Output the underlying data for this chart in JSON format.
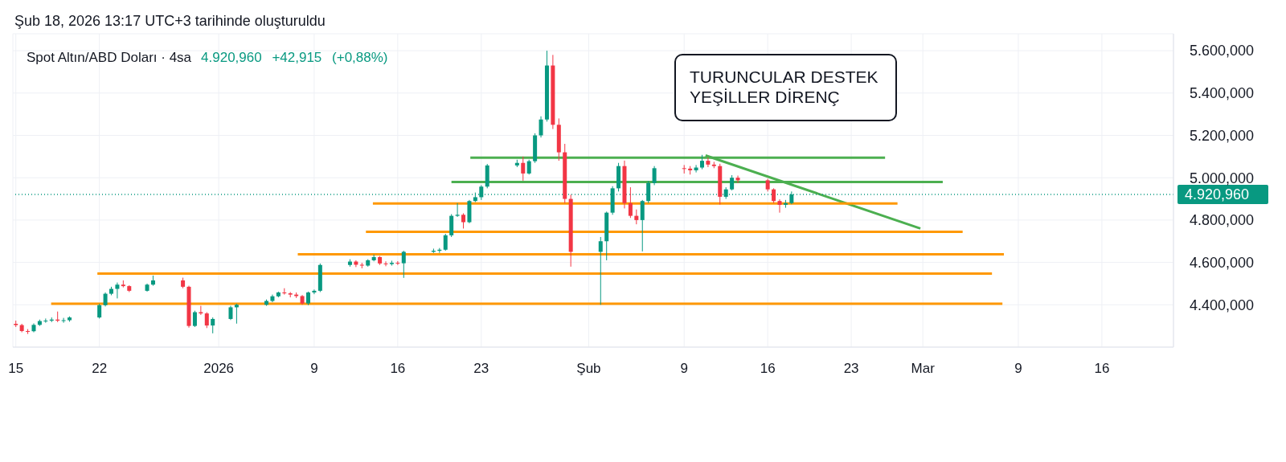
{
  "chart_data": {
    "type": "candlestick",
    "title": "Spot Altın/ABD Doları · 4sa",
    "subtitle": "4.920,960 +42,915 (+0,88%)",
    "annotations": [
      "Şub 18, 2026 13:17 UTC+3 tarihinde oluşturuldu",
      "TURUNCULAR DESTEK\nYEŞİLLER DİRENÇ"
    ],
    "x": [
      "2025-12-15T00:00",
      "2025-12-15T12:00",
      "2025-12-16T00:00",
      "2025-12-16T12:00",
      "2025-12-17T00:00",
      "2025-12-17T12:00",
      "2025-12-18T00:00",
      "2025-12-18T12:00",
      "2025-12-19T00:00",
      "2025-12-19T12:00",
      "2025-12-22T00:00",
      "2025-12-22T12:00",
      "2025-12-23T00:00",
      "2025-12-23T12:00",
      "2025-12-24T00:00",
      "2025-12-24T12:00",
      "2025-12-26T00:00",
      "2025-12-26T12:00",
      "2025-12-29T00:00",
      "2025-12-29T12:00",
      "2025-12-30T00:00",
      "2025-12-30T12:00",
      "2025-12-31T00:00",
      "2025-12-31T12:00",
      "2026-01-02T00:00",
      "2026-01-02T12:00",
      "2026-01-05T00:00",
      "2026-01-05T12:00",
      "2026-01-06T00:00",
      "2026-01-06T12:00",
      "2026-01-07T00:00",
      "2026-01-07T12:00",
      "2026-01-08T00:00",
      "2026-01-08T12:00",
      "2026-01-09T00:00",
      "2026-01-09T12:00",
      "2026-01-12T00:00",
      "2026-01-12T12:00",
      "2026-01-13T00:00",
      "2026-01-13T12:00",
      "2026-01-14T00:00",
      "2026-01-14T12:00",
      "2026-01-15T00:00",
      "2026-01-15T12:00",
      "2026-01-16T00:00",
      "2026-01-16T12:00",
      "2026-01-19T00:00",
      "2026-01-19T12:00",
      "2026-01-20T00:00",
      "2026-01-20T12:00",
      "2026-01-21T00:00",
      "2026-01-21T12:00",
      "2026-01-22T00:00",
      "2026-01-22T12:00",
      "2026-01-23T00:00",
      "2026-01-23T12:00",
      "2026-01-26T00:00",
      "2026-01-26T12:00",
      "2026-01-27T00:00",
      "2026-01-27T12:00",
      "2026-01-28T00:00",
      "2026-01-28T12:00",
      "2026-01-29T00:00",
      "2026-01-29T12:00",
      "2026-01-30T00:00",
      "2026-01-30T12:00",
      "2026-02-02T00:00",
      "2026-02-02T12:00",
      "2026-02-03T00:00",
      "2026-02-03T12:00",
      "2026-02-04T00:00",
      "2026-02-04T12:00",
      "2026-02-05T00:00",
      "2026-02-05T12:00",
      "2026-02-06T00:00",
      "2026-02-06T12:00",
      "2026-02-09T00:00",
      "2026-02-09T12:00",
      "2026-02-10T00:00",
      "2026-02-10T12:00",
      "2026-02-11T00:00",
      "2026-02-11T12:00",
      "2026-02-12T00:00",
      "2026-02-12T12:00",
      "2026-02-13T00:00",
      "2026-02-13T12:00",
      "2026-02-16T00:00",
      "2026-02-16T12:00",
      "2026-02-17T00:00",
      "2026-02-17T12:00",
      "2026-02-18T00:00"
    ],
    "ohlc": [
      [
        4310,
        4325,
        4295,
        4304
      ],
      [
        4304,
        4310,
        4270,
        4276
      ],
      [
        4276,
        4285,
        4262,
        4275
      ],
      [
        4275,
        4312,
        4270,
        4305
      ],
      [
        4305,
        4330,
        4300,
        4323
      ],
      [
        4323,
        4335,
        4315,
        4325
      ],
      [
        4325,
        4340,
        4318,
        4330
      ],
      [
        4330,
        4368,
        4318,
        4325
      ],
      [
        4325,
        4338,
        4315,
        4327
      ],
      [
        4327,
        4345,
        4320,
        4340
      ],
      [
        4340,
        4405,
        4335,
        4398
      ],
      [
        4398,
        4458,
        4392,
        4452
      ],
      [
        4452,
        4485,
        4445,
        4475
      ],
      [
        4475,
        4505,
        4430,
        4495
      ],
      [
        4495,
        4515,
        4482,
        4488
      ],
      [
        4488,
        4492,
        4460,
        4466
      ],
      [
        4466,
        4500,
        4462,
        4495
      ],
      [
        4495,
        4538,
        4490,
        4515
      ],
      [
        4515,
        4528,
        4478,
        4485
      ],
      [
        4485,
        4490,
        4292,
        4300
      ],
      [
        4300,
        4372,
        4295,
        4365
      ],
      [
        4365,
        4395,
        4352,
        4359
      ],
      [
        4359,
        4365,
        4290,
        4302
      ],
      [
        4302,
        4340,
        4265,
        4333
      ],
      [
        4333,
        4395,
        4328,
        4388
      ],
      [
        4388,
        4405,
        4311,
        4400
      ],
      [
        4400,
        4425,
        4395,
        4418
      ],
      [
        4418,
        4448,
        4412,
        4440
      ],
      [
        4440,
        4462,
        4435,
        4458
      ],
      [
        4458,
        4478,
        4448,
        4454
      ],
      [
        4454,
        4460,
        4435,
        4448
      ],
      [
        4448,
        4458,
        4432,
        4441
      ],
      [
        4441,
        4446,
        4400,
        4406
      ],
      [
        4406,
        4462,
        4398,
        4458
      ],
      [
        4458,
        4472,
        4450,
        4466
      ],
      [
        4466,
        4595,
        4460,
        4588
      ],
      [
        4588,
        4615,
        4580,
        4604
      ],
      [
        4604,
        4610,
        4578,
        4589
      ],
      [
        4589,
        4598,
        4572,
        4585
      ],
      [
        4585,
        4615,
        4580,
        4610
      ],
      [
        4610,
        4637,
        4605,
        4625
      ],
      [
        4625,
        4630,
        4588,
        4595
      ],
      [
        4595,
        4605,
        4582,
        4592
      ],
      [
        4592,
        4608,
        4585,
        4598
      ],
      [
        4598,
        4606,
        4588,
        4596
      ],
      [
        4596,
        4655,
        4527,
        4650
      ],
      [
        4650,
        4665,
        4645,
        4655
      ],
      [
        4655,
        4668,
        4645,
        4660
      ],
      [
        4660,
        4735,
        4655,
        4728
      ],
      [
        4728,
        4828,
        4720,
        4820
      ],
      [
        4820,
        4880,
        4815,
        4825
      ],
      [
        4825,
        4832,
        4760,
        4790
      ],
      [
        4790,
        4895,
        4785,
        4890
      ],
      [
        4890,
        4930,
        4885,
        4908
      ],
      [
        4908,
        4965,
        4895,
        4958
      ],
      [
        4958,
        5065,
        4950,
        5058
      ],
      [
        5058,
        5085,
        5050,
        5070
      ],
      [
        5070,
        5100,
        4986,
        5020
      ],
      [
        5020,
        5085,
        5015,
        5078
      ],
      [
        5078,
        5210,
        5070,
        5200
      ],
      [
        5200,
        5290,
        5190,
        5275
      ],
      [
        5275,
        5600,
        5265,
        5530
      ],
      [
        5530,
        5580,
        5230,
        5250
      ],
      [
        5250,
        5280,
        5080,
        5120
      ],
      [
        5120,
        5160,
        4880,
        4900
      ],
      [
        4900,
        4920,
        4580,
        4650
      ],
      [
        4650,
        4720,
        4400,
        4700
      ],
      [
        4700,
        4840,
        4610,
        4835
      ],
      [
        4835,
        4960,
        4825,
        4950
      ],
      [
        4950,
        5070,
        4935,
        5055
      ],
      [
        5055,
        5081,
        4855,
        4880
      ],
      [
        4880,
        4955,
        4810,
        4820
      ],
      [
        4820,
        4850,
        4780,
        4800
      ],
      [
        4800,
        4895,
        4652,
        4890
      ],
      [
        4890,
        4985,
        4880,
        4975
      ],
      [
        4975,
        5055,
        4965,
        5045
      ],
      [
        5045,
        5060,
        5020,
        5043
      ],
      [
        5043,
        5055,
        5015,
        5035
      ],
      [
        5035,
        5060,
        5025,
        5048
      ],
      [
        5048,
        5108,
        5040,
        5080
      ],
      [
        5080,
        5095,
        5050,
        5062
      ],
      [
        5062,
        5075,
        5045,
        5055
      ],
      [
        5055,
        5066,
        4873,
        4910
      ],
      [
        4910,
        4955,
        4900,
        4945
      ],
      [
        4945,
        5012,
        4940,
        5000
      ],
      [
        5000,
        5010,
        4975,
        4988
      ],
      [
        4988,
        4995,
        4935,
        4945
      ],
      [
        4945,
        4950,
        4880,
        4890
      ],
      [
        4890,
        4898,
        4835,
        4872
      ],
      [
        4872,
        4895,
        4858,
        4880
      ],
      [
        4880,
        4935,
        4875,
        4920.96
      ]
    ],
    "colors": [
      "#f23645",
      "#f23645",
      "#f23645",
      "#089981",
      "#089981",
      "#089981",
      "#089981",
      "#f23645",
      "#089981",
      "#089981",
      "#089981",
      "#089981",
      "#089981",
      "#089981",
      "#f23645",
      "#f23645",
      "#089981",
      "#089981",
      "#f23645",
      "#f23645",
      "#089981",
      "#f23645",
      "#f23645",
      "#089981",
      "#089981",
      "#089981",
      "#089981",
      "#089981",
      "#089981",
      "#f23645",
      "#f23645",
      "#f23645",
      "#f23645",
      "#089981",
      "#089981",
      "#089981",
      "#089981",
      "#f23645",
      "#f23645",
      "#089981",
      "#089981",
      "#f23645",
      "#f23645",
      "#089981",
      "#f23645",
      "#089981",
      "#089981",
      "#089981",
      "#089981",
      "#089981",
      "#089981",
      "#f23645",
      "#089981",
      "#089981",
      "#089981",
      "#089981",
      "#089981",
      "#f23645",
      "#089981",
      "#089981",
      "#089981",
      "#089981",
      "#f23645",
      "#f23645",
      "#f23645",
      "#f23645",
      "#089981",
      "#089981",
      "#089981",
      "#089981",
      "#f23645",
      "#f23645",
      "#f23645",
      "#089981",
      "#089981",
      "#089981",
      "#f23645",
      "#f23645",
      "#089981",
      "#089981",
      "#f23645",
      "#f23645",
      "#f23645",
      "#089981",
      "#089981",
      "#f23645",
      "#f23645",
      "#f23645",
      "#f23645",
      "#089981",
      "#089981"
    ],
    "series": [
      {
        "type": "line",
        "color": "#4caf50",
        "x": [
          "2026-01-22T02:00",
          "2026-02-25T20:00"
        ],
        "values": [
          5095,
          5095
        ]
      },
      {
        "type": "line",
        "color": "#4caf50",
        "x": [
          "2026-01-20T12:00",
          "2026-03-02T16:00"
        ],
        "values": [
          4980,
          4980
        ]
      },
      {
        "type": "line",
        "color": "#4caf50",
        "x": [
          "2026-02-10T19:00",
          "2026-02-28T19:00"
        ],
        "values": [
          5105,
          4760
        ]
      },
      {
        "type": "line",
        "color": "#ff9800",
        "x": [
          "2026-01-13T22:00",
          "2026-02-26T21:00"
        ],
        "values": [
          4878,
          4878
        ]
      },
      {
        "type": "line",
        "color": "#ff9800",
        "x": [
          "2026-01-13T08:00",
          "2026-03-04T08:00"
        ],
        "values": [
          4745,
          4745
        ]
      },
      {
        "type": "line",
        "color": "#ff9800",
        "x": [
          "2026-01-07T15:00",
          "2026-03-07T19:00"
        ],
        "values": [
          4638,
          4638
        ]
      },
      {
        "type": "line",
        "color": "#ff9800",
        "x": [
          "2025-12-21T20:00",
          "2026-03-06T19:00"
        ],
        "values": [
          4547,
          4547
        ]
      },
      {
        "type": "line",
        "color": "#ff9800",
        "x": [
          "2025-12-17T23:00",
          "2026-03-07T16:00"
        ],
        "values": [
          4405,
          4405
        ]
      }
    ],
    "ref_lines": [
      {
        "axis": "y",
        "value": 4920.96,
        "label": "4.920,960",
        "color": "#089981",
        "line_style": "dotted"
      }
    ],
    "xlim": [
      "2025-12-14T18:00",
      "2026-03-22T00:00"
    ],
    "xticks": [
      {
        "value": "2025-12-15",
        "label": "15"
      },
      {
        "value": "2025-12-22",
        "label": "22"
      },
      {
        "value": "2026-01-01",
        "label": "2026"
      },
      {
        "value": "2026-01-09",
        "label": "9"
      },
      {
        "value": "2026-01-16",
        "label": "16"
      },
      {
        "value": "2026-01-23",
        "label": "23"
      },
      {
        "value": "2026-02-01",
        "label": "Şub"
      },
      {
        "value": "2026-02-09",
        "label": "9"
      },
      {
        "value": "2026-02-16",
        "label": "16"
      },
      {
        "value": "2026-02-23",
        "label": "23"
      },
      {
        "value": "2026-03-01",
        "label": "Mar"
      },
      {
        "value": "2026-03-09",
        "label": "9"
      },
      {
        "value": "2026-03-16",
        "label": "16"
      }
    ],
    "ylim": [
      4200,
      5680
    ],
    "yticks": [
      {
        "value": 4400,
        "label": "4.400,000"
      },
      {
        "value": 4600,
        "label": "4.600,000"
      },
      {
        "value": 4800,
        "label": "4.800,000"
      },
      {
        "value": 5000,
        "label": "5.000,000"
      },
      {
        "value": 5200,
        "label": "5.200,000"
      },
      {
        "value": 5400,
        "label": "5.400,000"
      },
      {
        "value": 5600,
        "label": "5.600,000"
      }
    ],
    "grid": true
  }
}
